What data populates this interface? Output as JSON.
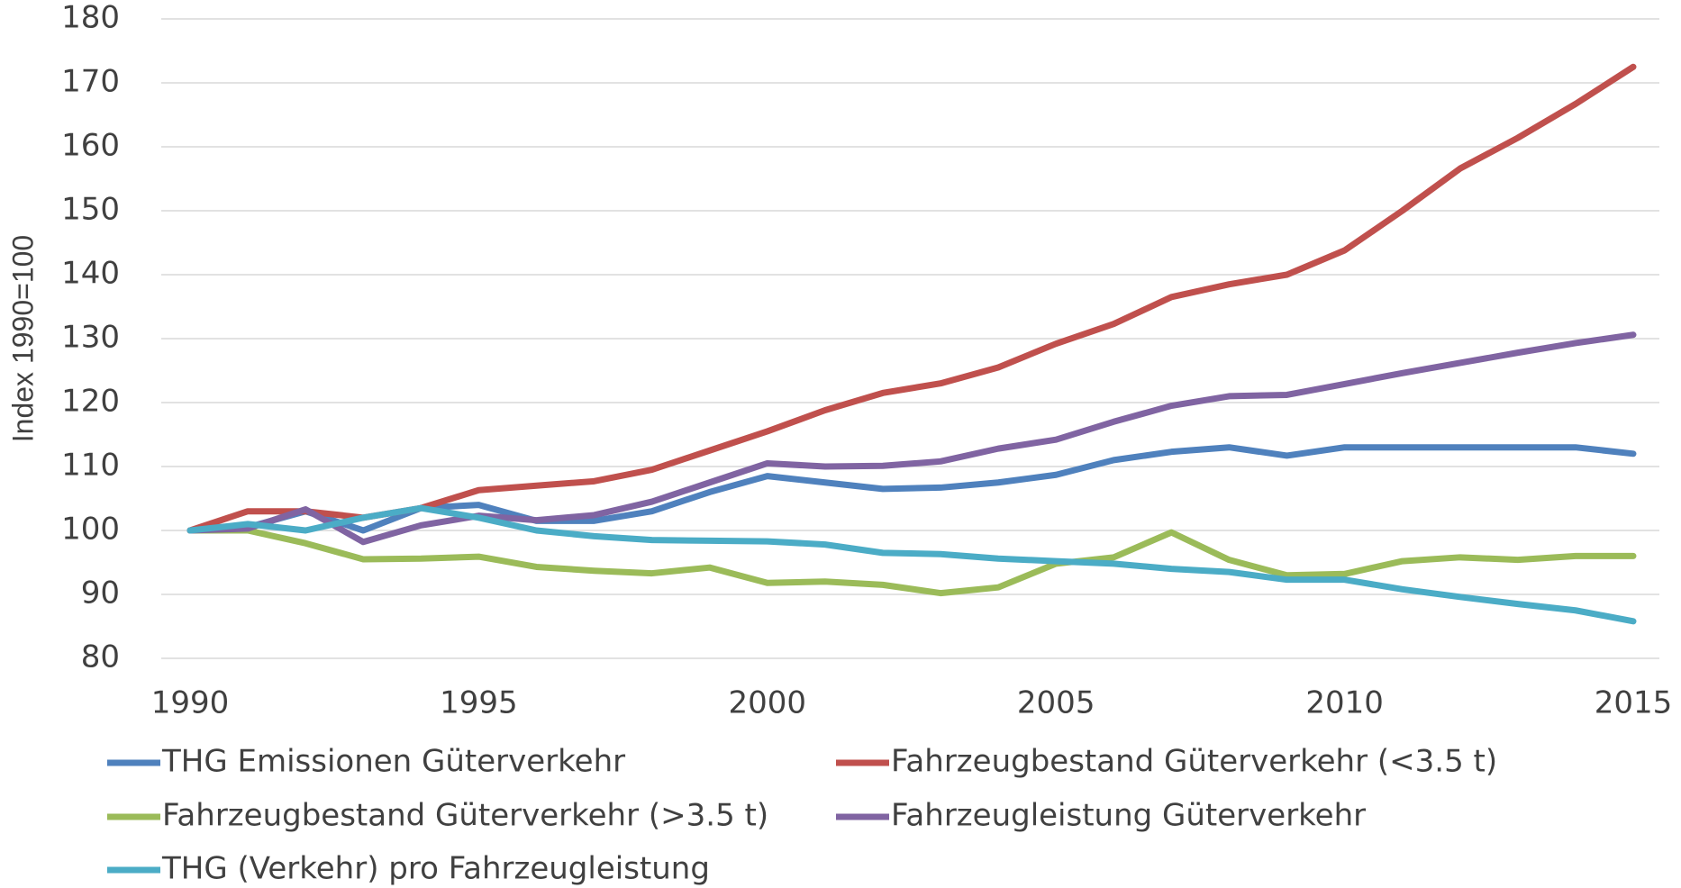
{
  "chart_data": {
    "type": "line",
    "y_label": "Index 1990=100",
    "x": [
      1990,
      1991,
      1992,
      1993,
      1994,
      1995,
      1996,
      1997,
      1998,
      1999,
      2000,
      2001,
      2002,
      2003,
      2004,
      2005,
      2006,
      2007,
      2008,
      2009,
      2010,
      2011,
      2012,
      2013,
      2014,
      2015
    ],
    "xlim": [
      1990,
      2015
    ],
    "xticks": [
      1990,
      1995,
      2000,
      2005,
      2010,
      2015
    ],
    "ylim": [
      80,
      180
    ],
    "yticks": [
      80,
      90,
      100,
      110,
      120,
      130,
      140,
      150,
      160,
      170,
      180
    ],
    "grid": true,
    "legend": "bottom",
    "series": [
      {
        "name": "THG Emissionen Güterverkehr",
        "color": "#4f81bd",
        "values": [
          100,
          100.5,
          103,
          100,
          103.5,
          104,
          101.5,
          101.5,
          103,
          106,
          108.5,
          107.5,
          106.5,
          106.7,
          107.5,
          108.7,
          111,
          112.3,
          113,
          111.7,
          113,
          113,
          113,
          113,
          113,
          112
        ]
      },
      {
        "name": "Fahrzeugbestand Güterverkehr (<3.5 t)",
        "color": "#c0504d",
        "values": [
          100,
          103,
          103,
          102,
          103.5,
          106.3,
          107,
          107.7,
          109.5,
          112.5,
          115.5,
          118.8,
          121.5,
          123,
          125.5,
          129.2,
          132.3,
          136.5,
          138.5,
          140,
          143.8,
          150,
          156.6,
          161.4,
          166.7,
          172.5
        ]
      },
      {
        "name": "Fahrzeugbestand Güterverkehr (>3.5 t)",
        "color": "#9bbb59",
        "values": [
          100,
          100,
          98,
          95.5,
          95.6,
          95.9,
          94.3,
          93.7,
          93.3,
          94.2,
          91.8,
          92,
          91.5,
          90.2,
          91.1,
          94.8,
          95.8,
          99.7,
          95.4,
          93,
          93.2,
          95.2,
          95.8,
          95.4,
          96,
          96
        ]
      },
      {
        "name": "Fahrzeugleistung Güterverkehr",
        "color": "#8064a2",
        "values": [
          100,
          100.3,
          103.3,
          98.2,
          100.8,
          102.3,
          101.6,
          102.4,
          104.5,
          107.5,
          110.5,
          110,
          110.1,
          110.8,
          112.8,
          114.2,
          117,
          119.5,
          121,
          121.2,
          122.9,
          124.6,
          126.2,
          127.8,
          129.3,
          130.6
        ]
      },
      {
        "name": "THG (Verkehr) pro Fahrzeugleistung",
        "color": "#4bacc6",
        "values": [
          100,
          101,
          100,
          102,
          103.5,
          102,
          100,
          99.1,
          98.5,
          98.4,
          98.3,
          97.8,
          96.5,
          96.3,
          95.6,
          95.2,
          94.8,
          94,
          93.5,
          92.3,
          92.3,
          90.8,
          89.6,
          88.5,
          87.5,
          85.8
        ]
      }
    ]
  }
}
